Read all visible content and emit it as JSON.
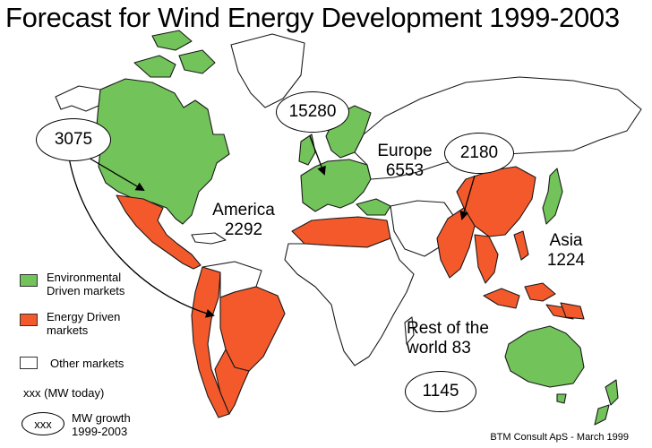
{
  "title": "Forecast for Wind Energy Development 1999-2003",
  "colors": {
    "environmental": "#72c35a",
    "energy": "#f4592b",
    "other": "#ffffff",
    "border": "#1a1a1a"
  },
  "regions": {
    "america": {
      "name": "America",
      "value": "2292",
      "growth": "3075"
    },
    "europe": {
      "name": "Europe",
      "value": "6553",
      "growth": "15280"
    },
    "asia": {
      "name": "Asia",
      "value": "1224",
      "growth": "2180"
    },
    "rest": {
      "name_line1": "Rest of the",
      "name_line2": "world 83",
      "growth": "1145"
    }
  },
  "legend": {
    "environmental_line1": "Environmental",
    "environmental_line2": "Driven markets",
    "energy_line1": "Energy Driven",
    "energy_line2": "markets",
    "other": "Other markets",
    "mw_today": "xxx  (MW today)",
    "growth_symbol": "xxx",
    "growth_line1": "MW growth",
    "growth_line2": "1999-2003"
  },
  "credit": "BTM Consult ApS - March 1999"
}
